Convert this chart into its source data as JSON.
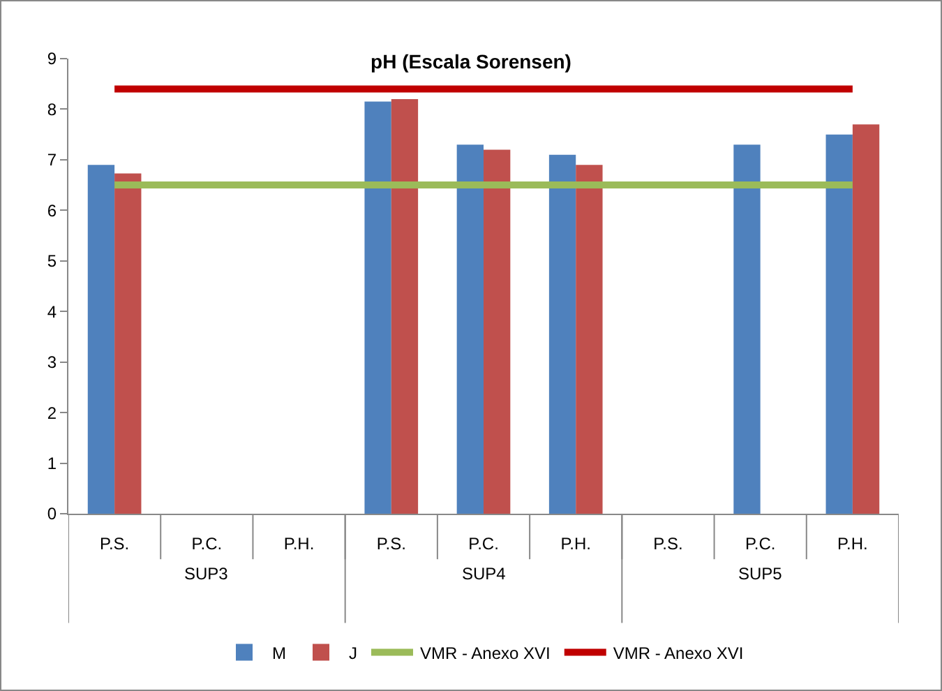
{
  "chart_data": {
    "type": "bar",
    "title": "pH (Escala Sorensen)",
    "categories": [
      "P.S.",
      "P.C.",
      "P.H.",
      "P.S.",
      "P.C.",
      "P.H.",
      "P.S.",
      "P.C.",
      "P.H."
    ],
    "series": [
      {
        "name": "M",
        "color": "#4f81bd",
        "values": [
          6.9,
          null,
          null,
          8.15,
          7.3,
          7.1,
          null,
          7.3,
          7.5
        ]
      },
      {
        "name": "J",
        "color": "#c0504d",
        "values": [
          6.73,
          null,
          null,
          8.2,
          7.2,
          6.9,
          null,
          null,
          7.7
        ]
      },
      {
        "name": "VMR - Anexo XVI",
        "type": "line",
        "color": "#9bbb59",
        "values": [
          6.5,
          6.5,
          6.5,
          6.5,
          6.5,
          6.5,
          6.5,
          6.5,
          6.5
        ]
      },
      {
        "name": "VMR - Anexo XVI",
        "type": "line",
        "color": "#c00000",
        "values": [
          8.4,
          8.4,
          8.4,
          8.4,
          8.4,
          8.4,
          8.4,
          8.4,
          8.4
        ]
      }
    ],
    "annotations": [
      "SUP3",
      "SUP4",
      "SUP5"
    ],
    "ylim": [
      0,
      9
    ],
    "yticks": [
      0,
      1,
      2,
      3,
      4,
      5,
      6,
      7,
      8,
      9
    ],
    "grid": false,
    "legend": "bottom"
  }
}
